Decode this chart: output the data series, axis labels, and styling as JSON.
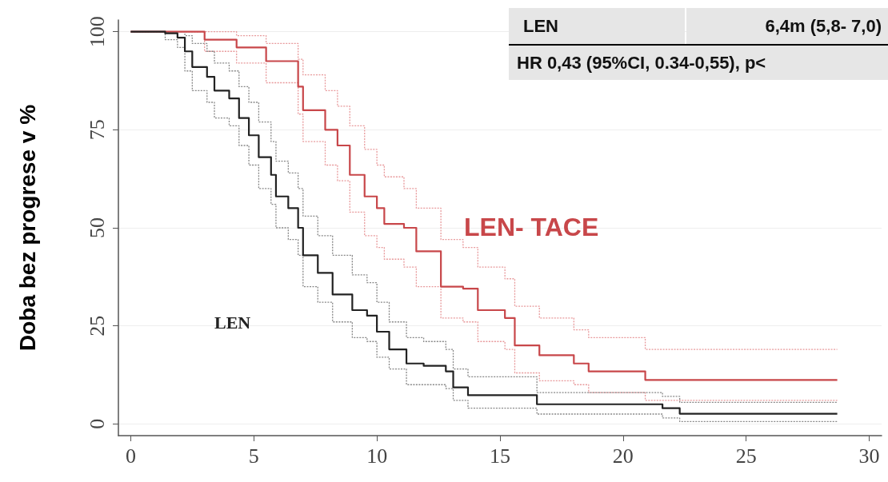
{
  "chart_data": {
    "type": "step",
    "ylabel": "Doba bez progrese v %",
    "xlim": [
      -0.5,
      30.5
    ],
    "xticks": [
      0,
      5,
      10,
      15,
      20,
      25,
      30
    ],
    "ylim": [
      -3,
      103
    ],
    "yticks": [
      0,
      25,
      50,
      75,
      100
    ],
    "grid": "y",
    "legend": false,
    "marker": "none",
    "line_style": "solid",
    "annotations": [
      "LEN",
      "6,4m (5,8- 7,0)",
      "HR 0,43 (95%CI, 0.34-0,55), p<"
    ],
    "series": [
      {
        "name": "LEN- TACE",
        "color": "#c8474a",
        "x": [
          0,
          2,
          3,
          4.3,
          5.5,
          6.8,
          7,
          7.9,
          8.4,
          8.9,
          9.5,
          10,
          10.3,
          11.1,
          11.6,
          12.6,
          13.5,
          14.1,
          15.2,
          15.6,
          16.6,
          18,
          18.6,
          20.9,
          28.7
        ],
        "values": [
          100,
          100,
          98,
          96,
          92.5,
          86,
          80,
          75,
          71,
          63.5,
          58,
          55,
          51,
          50,
          44,
          35,
          34.5,
          29,
          27,
          20,
          17.5,
          15.4,
          13.4,
          11.2,
          11.2
        ]
      },
      {
        "color": "#e89a9c",
        "line_style": "dotted",
        "x": [
          2,
          3,
          4.3,
          5.5,
          6.8,
          7,
          7.9,
          8.4,
          8.9,
          9.5,
          10,
          10.3,
          11.1,
          11.6,
          12.6,
          13.5,
          14.1,
          15.2,
          15.6,
          16.6,
          18,
          18.6,
          20.9,
          28.7
        ],
        "values": [
          100,
          100,
          99,
          97,
          93,
          89,
          85,
          81,
          76,
          70,
          66,
          63,
          60,
          55,
          47,
          45,
          40,
          37,
          30,
          27,
          24,
          22,
          19,
          19
        ]
      },
      {
        "color": "#e89a9c",
        "line_style": "dotted",
        "x": [
          2,
          3,
          4.3,
          5.5,
          6.8,
          7,
          7.9,
          8.4,
          8.9,
          9.5,
          10,
          10.3,
          11.1,
          11.6,
          12.6,
          13.5,
          14.1,
          15.2,
          15.6,
          16.6,
          18,
          18.6,
          20.9,
          28.7
        ],
        "values": [
          100,
          95,
          92,
          87,
          79,
          72,
          66,
          62,
          54,
          48,
          45,
          42,
          40,
          35,
          27,
          26,
          21,
          19,
          13,
          11,
          10,
          8,
          6,
          6
        ]
      },
      {
        "name": "LEN",
        "color": "#222222",
        "x": [
          0,
          1.4,
          1.9,
          2.2,
          2.5,
          3.1,
          3.4,
          4,
          4.4,
          4.8,
          5.2,
          5.7,
          5.9,
          6.4,
          6.8,
          7,
          7.6,
          8.2,
          9,
          9.6,
          10,
          10.5,
          11.2,
          11.9,
          12.8,
          13.1,
          13.7,
          16.5,
          21.6,
          22.3,
          28.7
        ],
        "values": [
          100,
          99.6,
          98.5,
          95,
          91,
          88.5,
          85,
          83,
          78,
          73.6,
          68,
          63.5,
          58,
          55,
          50,
          43,
          38.5,
          33,
          29,
          27.6,
          23.5,
          19,
          15.4,
          14.8,
          13.4,
          9.3,
          7.3,
          5,
          4,
          2.6,
          2.6
        ]
      },
      {
        "color": "#888888",
        "line_style": "dotted",
        "x": [
          0,
          1.4,
          1.9,
          2.2,
          2.5,
          3.1,
          3.4,
          4,
          4.4,
          4.8,
          5.2,
          5.7,
          5.9,
          6.4,
          6.8,
          7,
          7.6,
          8.2,
          9,
          9.6,
          10,
          10.5,
          11.2,
          11.9,
          12.8,
          13.1,
          13.7,
          16.5,
          21.6,
          22.3,
          28.7
        ],
        "values": [
          100,
          100,
          100,
          99,
          97,
          95,
          92,
          90,
          86,
          82,
          77,
          72,
          67,
          64,
          60,
          53,
          48,
          43,
          38,
          36,
          31,
          26,
          22,
          21,
          19,
          14,
          12,
          8,
          7,
          5.5,
          5.5
        ]
      },
      {
        "color": "#888888",
        "line_style": "dotted",
        "x": [
          0,
          1.4,
          1.9,
          2.2,
          2.5,
          3.1,
          3.4,
          4,
          4.4,
          4.8,
          5.2,
          5.7,
          5.9,
          6.4,
          6.8,
          7,
          7.6,
          8.2,
          9,
          9.6,
          10,
          10.5,
          11.2,
          11.9,
          12.8,
          13.1,
          13.7,
          16.5,
          21.6,
          22.3,
          28.7
        ],
        "values": [
          100,
          98,
          96,
          90,
          85,
          82,
          78,
          76,
          71,
          66,
          60,
          56,
          50,
          47,
          43,
          35,
          31,
          26,
          22,
          21,
          17,
          14,
          10,
          10,
          9,
          6,
          4,
          2.5,
          1.5,
          0.6,
          0.6
        ]
      }
    ]
  }
}
